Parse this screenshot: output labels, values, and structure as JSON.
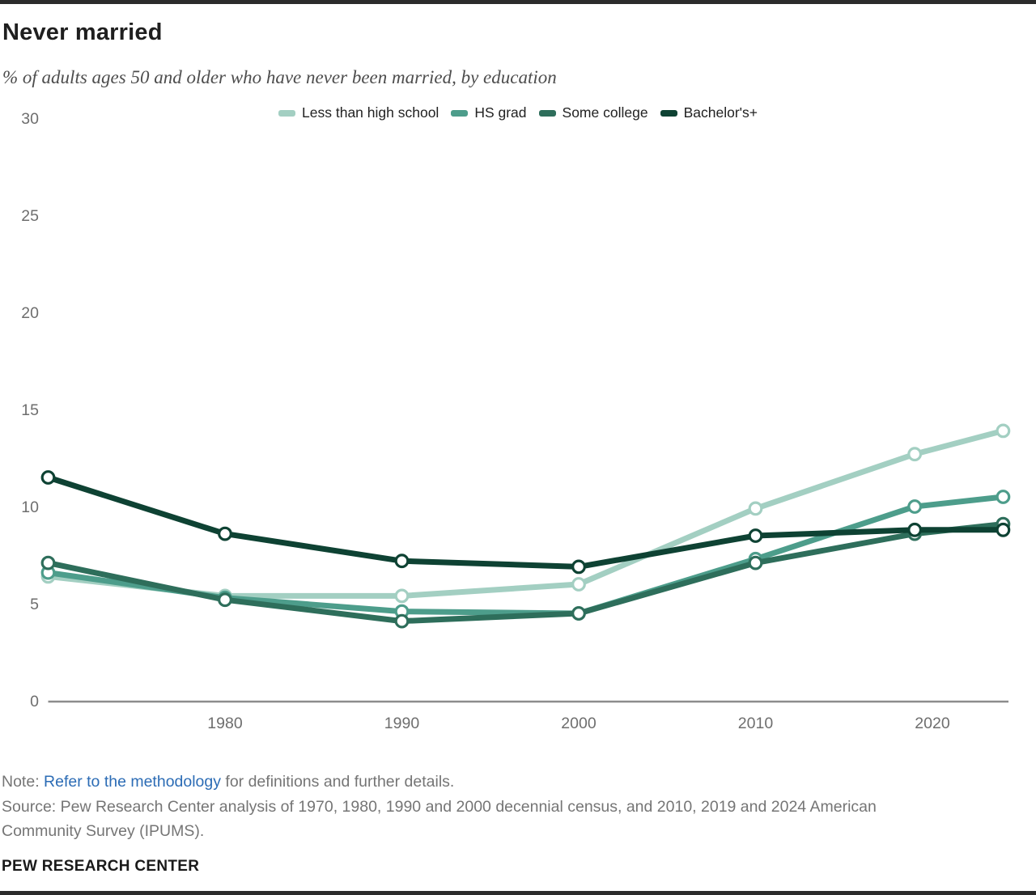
{
  "page": {
    "title": "Never married",
    "subtitle": "% of adults ages 50 and older who have never been married, by education",
    "footer": {
      "note_prefix": "Note: ",
      "note_link": "Refer to the methodology",
      "note_suffix": " for definitions and further details.",
      "source": "Source: Pew Research Center analysis of 1970, 1980, 1990 and 2000 decennial census, and 2010, 2019 and 2024 American Community Survey (IPUMS).",
      "brand": "PEW RESEARCH CENTER"
    },
    "colors": {
      "rule_bar": "#2b2b2b",
      "axis_line": "#8c8c8c",
      "axis_text": "#6e6e6e",
      "link": "#2c6cb5",
      "marker_fill": "#ffffff"
    }
  },
  "chart_data": {
    "type": "line",
    "title": "Never married",
    "subtitle": "% of adults ages 50 and older who have never been married, by education",
    "x": [
      1970,
      1980,
      1990,
      2000,
      2010,
      2019,
      2024
    ],
    "x_ticks": [
      1980,
      1990,
      2000,
      2010,
      2020
    ],
    "ylim": [
      0,
      30
    ],
    "yticks": [
      0,
      5,
      10,
      15,
      20,
      25,
      30
    ],
    "grid": false,
    "legend_position": "top-center",
    "marker": "open-circle",
    "series": [
      {
        "name": "Less than high school",
        "color": "#a3cfc2",
        "values": [
          6.4,
          5.4,
          5.4,
          6.0,
          9.9,
          12.7,
          13.9
        ]
      },
      {
        "name": "HS grad",
        "color": "#4d9d8b",
        "values": [
          6.6,
          5.3,
          4.6,
          4.5,
          7.3,
          10.0,
          10.5
        ]
      },
      {
        "name": "Some college",
        "color": "#2e6e5b",
        "values": [
          7.1,
          5.2,
          4.1,
          4.5,
          7.1,
          8.6,
          9.1
        ]
      },
      {
        "name": "Bachelor's+",
        "color": "#0e4233",
        "values": [
          11.5,
          8.6,
          7.2,
          6.9,
          8.5,
          8.8,
          8.8
        ]
      }
    ]
  }
}
